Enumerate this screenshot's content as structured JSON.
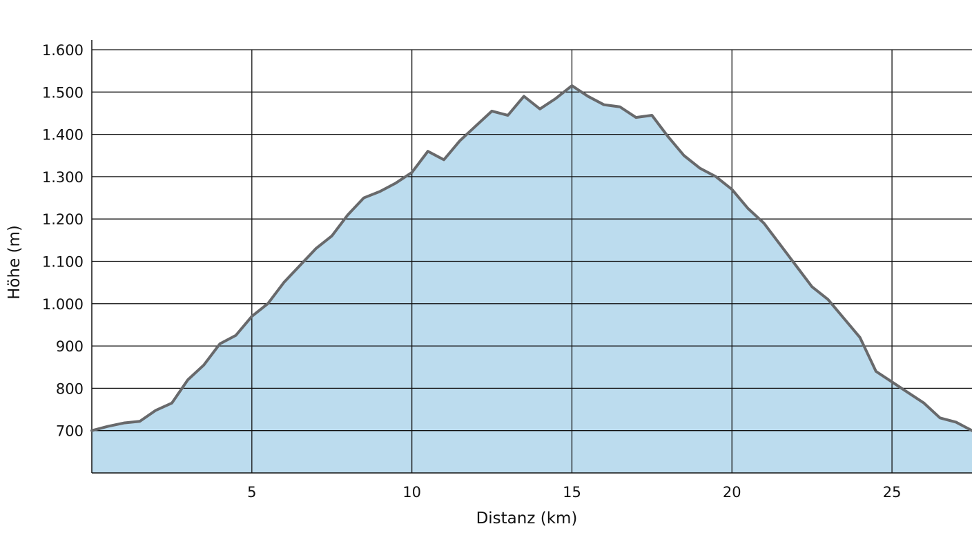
{
  "chart_data": {
    "type": "area",
    "x_label": "Distanz (km)",
    "y_label": "Höhe (m)",
    "x": [
      0,
      0.5,
      1,
      1.5,
      2,
      2.5,
      3,
      3.5,
      4,
      4.5,
      5,
      5.5,
      6,
      6.5,
      7,
      7.5,
      8,
      8.5,
      9,
      9.5,
      10,
      10.5,
      11,
      11.5,
      12,
      12.5,
      13,
      13.5,
      14,
      14.5,
      15,
      15.5,
      16,
      16.5,
      17,
      17.5,
      18,
      18.5,
      19,
      19.5,
      20,
      20.5,
      21,
      21.5,
      22,
      22.5,
      23,
      23.5,
      24,
      24.5,
      25,
      25.5,
      26,
      26.5,
      27,
      27.5
    ],
    "values": [
      700,
      710,
      718,
      722,
      748,
      765,
      820,
      855,
      905,
      925,
      970,
      1000,
      1050,
      1090,
      1130,
      1160,
      1210,
      1250,
      1265,
      1285,
      1310,
      1360,
      1340,
      1385,
      1420,
      1455,
      1445,
      1490,
      1460,
      1485,
      1515,
      1490,
      1470,
      1465,
      1440,
      1445,
      1395,
      1350,
      1320,
      1300,
      1270,
      1225,
      1190,
      1140,
      1090,
      1040,
      1010,
      965,
      920,
      840,
      815,
      790,
      765,
      730,
      720,
      700
    ],
    "line_color": "#68696b",
    "fill_color": "#bcdcee",
    "xlim": [
      0,
      27.5
    ],
    "xticks": [
      5,
      10,
      15,
      20,
      25
    ],
    "ylim": [
      600,
      1600
    ],
    "yticks": [
      700,
      800,
      900,
      {
        "value": 1000,
        "label": "1.000"
      },
      {
        "value": 1100,
        "label": "1.100"
      },
      {
        "value": 1200,
        "label": "1.200"
      },
      {
        "value": 1300,
        "label": "1.300"
      },
      {
        "value": 1400,
        "label": "1.400"
      },
      {
        "value": 1500,
        "label": "1.500"
      },
      {
        "value": 1600,
        "label": "1.600"
      }
    ],
    "grid": true
  }
}
